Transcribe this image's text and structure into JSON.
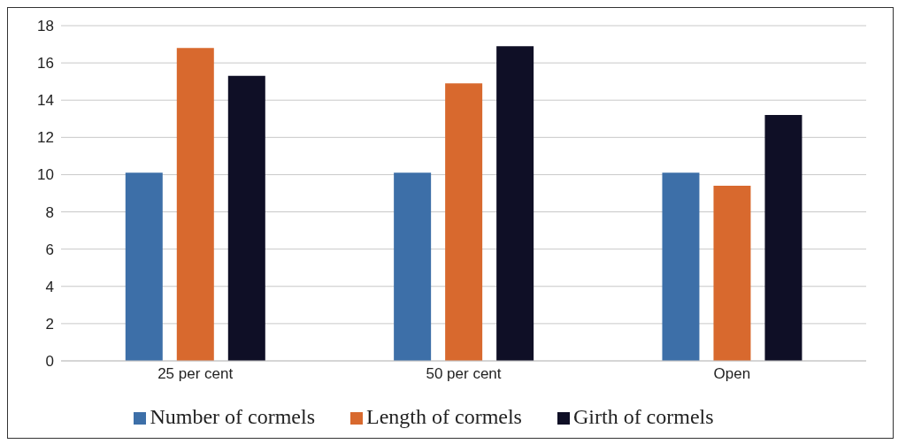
{
  "chart_data": {
    "type": "bar",
    "categories": [
      "25 per cent",
      "50 per cent",
      "Open"
    ],
    "series": [
      {
        "name": "Number of cormels",
        "color": "#3d6fa8",
        "values": [
          10.1,
          10.1,
          10.1
        ]
      },
      {
        "name": "Length of cormels",
        "color": "#d8692e",
        "values": [
          16.8,
          14.9,
          9.4
        ]
      },
      {
        "name": "Girth of cormels",
        "color": "#0f0f26",
        "values": [
          15.3,
          16.9,
          13.2
        ]
      }
    ],
    "ylim": [
      0,
      18
    ],
    "yticks": [
      0,
      2,
      4,
      6,
      8,
      10,
      12,
      14,
      16,
      18
    ],
    "grid": "y",
    "legend": "bottom"
  }
}
